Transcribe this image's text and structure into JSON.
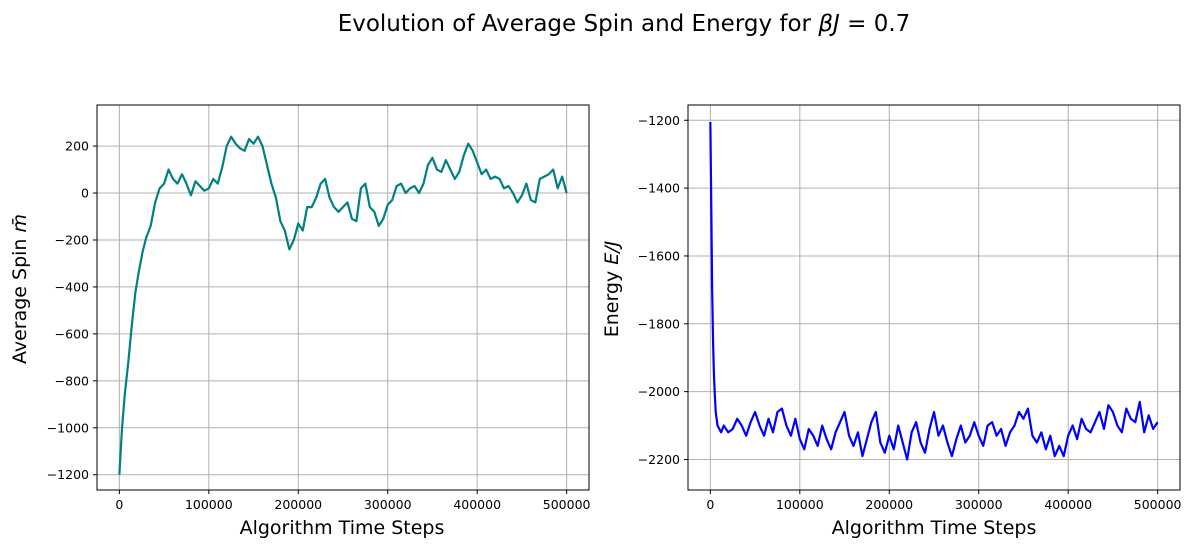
{
  "figure": {
    "title_main": "Evolution of Average Spin and Energy for ",
    "title_math": "βJ",
    "title_tail": " = 0.7"
  },
  "chart_data": [
    {
      "type": "line",
      "xlabel": "Algorithm Time Steps",
      "ylabel_text": "Average Spin ",
      "ylabel_math": "m̄",
      "xlim": [
        -25000,
        525000
      ],
      "ylim": [
        -1265,
        375
      ],
      "xticks": [
        0,
        100000,
        200000,
        300000,
        400000,
        500000
      ],
      "xtick_labels": [
        "0",
        "100000",
        "200000",
        "300000",
        "400000",
        "500000"
      ],
      "yticks": [
        200,
        0,
        -200,
        -400,
        -600,
        -800,
        -1000,
        -1200
      ],
      "ytick_labels": [
        "200",
        "0",
        "−200",
        "−400",
        "−600",
        "−800",
        "−1000",
        "−1200"
      ],
      "grid": true,
      "series": [
        {
          "color": "#008080",
          "x": [
            0,
            3000,
            6000,
            10000,
            14000,
            18000,
            22000,
            26000,
            30000,
            35000,
            40000,
            45000,
            50000,
            55000,
            60000,
            65000,
            70000,
            75000,
            80000,
            85000,
            90000,
            95000,
            100000,
            105000,
            110000,
            115000,
            120000,
            125000,
            130000,
            135000,
            140000,
            145000,
            150000,
            155000,
            160000,
            165000,
            170000,
            175000,
            180000,
            185000,
            190000,
            195000,
            200000,
            205000,
            210000,
            215000,
            220000,
            225000,
            230000,
            235000,
            240000,
            245000,
            250000,
            255000,
            260000,
            265000,
            270000,
            275000,
            280000,
            285000,
            290000,
            295000,
            300000,
            305000,
            310000,
            315000,
            320000,
            325000,
            330000,
            335000,
            340000,
            345000,
            350000,
            355000,
            360000,
            365000,
            370000,
            375000,
            380000,
            385000,
            390000,
            395000,
            400000,
            405000,
            410000,
            415000,
            420000,
            425000,
            430000,
            435000,
            440000,
            445000,
            450000,
            455000,
            460000,
            465000,
            470000,
            475000,
            480000,
            485000,
            490000,
            495000,
            500000
          ],
          "y": [
            -1200,
            -1000,
            -860,
            -720,
            -560,
            -420,
            -330,
            -250,
            -190,
            -140,
            -40,
            20,
            40,
            100,
            60,
            40,
            80,
            40,
            -10,
            50,
            30,
            10,
            20,
            60,
            40,
            110,
            200,
            240,
            210,
            190,
            180,
            230,
            210,
            240,
            200,
            120,
            40,
            -20,
            -120,
            -160,
            -240,
            -200,
            -130,
            -160,
            -60,
            -60,
            -20,
            40,
            60,
            -20,
            -60,
            -80,
            -60,
            -40,
            -110,
            -120,
            20,
            40,
            -60,
            -80,
            -140,
            -110,
            -50,
            -30,
            30,
            40,
            0,
            20,
            30,
            0,
            40,
            120,
            150,
            100,
            90,
            140,
            100,
            60,
            90,
            160,
            210,
            180,
            130,
            80,
            100,
            60,
            70,
            60,
            20,
            30,
            0,
            -40,
            -10,
            40,
            -30,
            -40,
            60,
            70,
            80,
            100,
            20,
            70,
            0
          ]
        }
      ]
    },
    {
      "type": "line",
      "xlabel": "Algorithm Time Steps",
      "ylabel_text": "Energy ",
      "ylabel_math": "E/J",
      "xlim": [
        -25000,
        525000
      ],
      "ylim": [
        -2290,
        -1155
      ],
      "xticks": [
        0,
        100000,
        200000,
        300000,
        400000,
        500000
      ],
      "xtick_labels": [
        "0",
        "100000",
        "200000",
        "300000",
        "400000",
        "500000"
      ],
      "yticks": [
        -1200,
        -1400,
        -1600,
        -1800,
        -2000,
        -2200
      ],
      "ytick_labels": [
        "−1200",
        "−1400",
        "−1600",
        "−1800",
        "−2000",
        "−2200"
      ],
      "grid": true,
      "series": [
        {
          "color": "#0000ff",
          "x": [
            0,
            1000,
            2000,
            3000,
            4000,
            5000,
            6000,
            7000,
            8000,
            10000,
            12000,
            15000,
            20000,
            25000,
            30000,
            35000,
            40000,
            45000,
            50000,
            55000,
            60000,
            65000,
            70000,
            75000,
            80000,
            85000,
            90000,
            95000,
            100000,
            105000,
            110000,
            115000,
            120000,
            125000,
            130000,
            135000,
            140000,
            145000,
            150000,
            155000,
            160000,
            165000,
            170000,
            175000,
            180000,
            185000,
            190000,
            195000,
            200000,
            205000,
            210000,
            215000,
            220000,
            225000,
            230000,
            235000,
            240000,
            245000,
            250000,
            255000,
            260000,
            265000,
            270000,
            275000,
            280000,
            285000,
            290000,
            295000,
            300000,
            305000,
            310000,
            315000,
            320000,
            325000,
            330000,
            335000,
            340000,
            345000,
            350000,
            355000,
            360000,
            365000,
            370000,
            375000,
            380000,
            385000,
            390000,
            395000,
            400000,
            405000,
            410000,
            415000,
            420000,
            425000,
            430000,
            435000,
            440000,
            445000,
            450000,
            455000,
            460000,
            465000,
            470000,
            475000,
            480000,
            485000,
            490000,
            495000,
            500000
          ],
          "y": [
            -1205,
            -1450,
            -1700,
            -1850,
            -1950,
            -2010,
            -2060,
            -2080,
            -2100,
            -2110,
            -2120,
            -2100,
            -2120,
            -2110,
            -2080,
            -2100,
            -2130,
            -2090,
            -2060,
            -2100,
            -2130,
            -2080,
            -2120,
            -2060,
            -2050,
            -2100,
            -2130,
            -2080,
            -2140,
            -2170,
            -2110,
            -2130,
            -2160,
            -2100,
            -2140,
            -2170,
            -2120,
            -2090,
            -2060,
            -2130,
            -2160,
            -2120,
            -2190,
            -2140,
            -2090,
            -2060,
            -2150,
            -2180,
            -2130,
            -2170,
            -2100,
            -2150,
            -2200,
            -2120,
            -2090,
            -2150,
            -2180,
            -2110,
            -2060,
            -2130,
            -2100,
            -2150,
            -2190,
            -2140,
            -2100,
            -2150,
            -2130,
            -2090,
            -2130,
            -2160,
            -2100,
            -2090,
            -2130,
            -2110,
            -2160,
            -2120,
            -2100,
            -2060,
            -2080,
            -2050,
            -2130,
            -2150,
            -2120,
            -2170,
            -2130,
            -2190,
            -2160,
            -2190,
            -2130,
            -2100,
            -2140,
            -2080,
            -2110,
            -2120,
            -2090,
            -2060,
            -2110,
            -2040,
            -2060,
            -2100,
            -2120,
            -2050,
            -2080,
            -2090,
            -2030,
            -2120,
            -2070,
            -2110,
            -2090
          ]
        }
      ]
    }
  ]
}
